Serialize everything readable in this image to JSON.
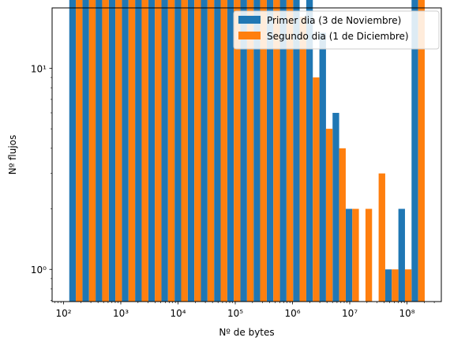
{
  "chart_data": {
    "type": "bar",
    "xscale": "log",
    "yscale": "log",
    "xlabel": "Nº de bytes",
    "ylabel": "Nº flujos",
    "xlim_exp": [
      1.8,
      8.6
    ],
    "ylim_exp": [
      -0.16,
      1.3
    ],
    "x_tick_exponents": [
      2,
      3,
      4,
      5,
      6,
      7,
      8
    ],
    "y_tick_exponents": [
      0,
      1,
      2,
      3
    ],
    "legend_placement": "top-right",
    "grid": false,
    "bin_edges_exp": [
      2.1,
      2.33,
      2.56,
      2.79,
      3.02,
      3.25,
      3.48,
      3.71,
      3.94,
      4.17,
      4.4,
      4.63,
      4.86,
      5.09,
      5.32,
      5.55,
      5.78,
      6.01,
      6.24,
      6.47,
      6.7,
      6.93,
      7.16,
      7.39,
      7.62,
      7.85,
      8.08,
      8.31
    ],
    "series": [
      {
        "name": "Primer dia (3 de Noviembre)",
        "color": "#1f77b4",
        "values": [
          90,
          580,
          580,
          720,
          420,
          260,
          175,
          100,
          270,
          750,
          430,
          410,
          310,
          190,
          190,
          170,
          110,
          38,
          23,
          15,
          6,
          2,
          0,
          0,
          1,
          2,
          140
        ]
      },
      {
        "name": "Segundo dia (1 de Diciembre)",
        "color": "#ff7f0e",
        "values": [
          240,
          1270,
          1370,
          1200,
          590,
          430,
          280,
          155,
          310,
          760,
          460,
          380,
          240,
          150,
          145,
          48,
          27,
          18,
          9,
          5,
          4,
          2,
          2,
          3,
          1,
          1,
          780
        ]
      }
    ]
  }
}
